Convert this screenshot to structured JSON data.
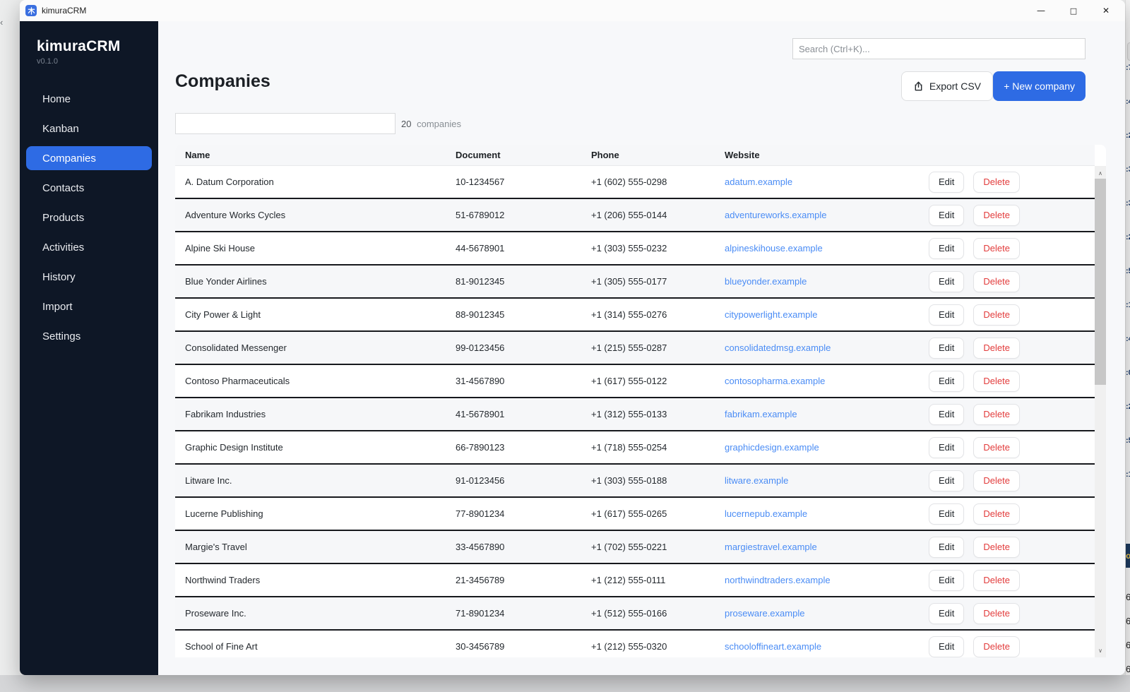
{
  "window": {
    "title": "kimuraCRM",
    "app_icon": "kimura-tree-icon",
    "controls": {
      "minimize": "—",
      "maximize": "□",
      "close": "✕"
    }
  },
  "sidebar": {
    "brand": "kimuraCRM",
    "version": "v0.1.0",
    "active_index": 2,
    "items": [
      {
        "label": "Home"
      },
      {
        "label": "Kanban"
      },
      {
        "label": "Companies"
      },
      {
        "label": "Contacts"
      },
      {
        "label": "Products"
      },
      {
        "label": "Activities"
      },
      {
        "label": "History"
      },
      {
        "label": "Import"
      },
      {
        "label": "Settings"
      }
    ]
  },
  "topbar": {
    "search_placeholder": "Search (Ctrl+K)...",
    "search_value": ""
  },
  "page": {
    "title": "Companies",
    "filter_value": "",
    "count_number": "20",
    "count_label": "companies",
    "export_label": "Export CSV",
    "export_icon": "upload-icon",
    "new_company_label": "+ New company"
  },
  "table": {
    "columns": [
      "Name",
      "Document",
      "Phone",
      "Website"
    ],
    "edit_label": "Edit",
    "delete_label": "Delete",
    "rows": [
      {
        "name": "A. Datum Corporation",
        "document": "10-1234567",
        "phone": "+1 (602) 555-0298",
        "website": "adatum.example"
      },
      {
        "name": "Adventure Works Cycles",
        "document": "51-6789012",
        "phone": "+1 (206) 555-0144",
        "website": "adventureworks.example"
      },
      {
        "name": "Alpine Ski House",
        "document": "44-5678901",
        "phone": "+1 (303) 555-0232",
        "website": "alpineskihouse.example"
      },
      {
        "name": "Blue Yonder Airlines",
        "document": "81-9012345",
        "phone": "+1 (305) 555-0177",
        "website": "blueyonder.example"
      },
      {
        "name": "City Power & Light",
        "document": "88-9012345",
        "phone": "+1 (314) 555-0276",
        "website": "citypowerlight.example"
      },
      {
        "name": "Consolidated Messenger",
        "document": "99-0123456",
        "phone": "+1 (215) 555-0287",
        "website": "consolidatedmsg.example"
      },
      {
        "name": "Contoso Pharmaceuticals",
        "document": "31-4567890",
        "phone": "+1 (617) 555-0122",
        "website": "contosopharma.example"
      },
      {
        "name": "Fabrikam Industries",
        "document": "41-5678901",
        "phone": "+1 (312) 555-0133",
        "website": "fabrikam.example"
      },
      {
        "name": "Graphic Design Institute",
        "document": "66-7890123",
        "phone": "+1 (718) 555-0254",
        "website": "graphicdesign.example"
      },
      {
        "name": "Litware Inc.",
        "document": "91-0123456",
        "phone": "+1 (303) 555-0188",
        "website": "litware.example"
      },
      {
        "name": "Lucerne Publishing",
        "document": "77-8901234",
        "phone": "+1 (617) 555-0265",
        "website": "lucernepub.example"
      },
      {
        "name": "Margie's Travel",
        "document": "33-4567890",
        "phone": "+1 (702) 555-0221",
        "website": "margiestravel.example"
      },
      {
        "name": "Northwind Traders",
        "document": "21-3456789",
        "phone": "+1 (212) 555-0111",
        "website": "northwindtraders.example"
      },
      {
        "name": "Proseware Inc.",
        "document": "71-8901234",
        "phone": "+1 (512) 555-0166",
        "website": "proseware.example"
      },
      {
        "name": "School of Fine Art",
        "document": "30-3456789",
        "phone": "+1 (212) 555-0320",
        "website": "schooloffineart.example"
      }
    ]
  },
  "background_edge": {
    "fragments": [
      ":7",
      ":4",
      ":2",
      ":3",
      ":3",
      ":2",
      ":5",
      ":1",
      ":4",
      ":0",
      ":2",
      ":5",
      ":1"
    ],
    "header_fragment": "o",
    "row_fragments": [
      "6",
      "6",
      "6",
      "6"
    ],
    "back_chevron": "‹"
  },
  "colors": {
    "accent_blue": "#2e6be4",
    "link_blue": "#4a8cf5",
    "delete_red": "#e23b3b",
    "sidebar_bg": "#0e1726",
    "row_separator": "#17191d"
  }
}
